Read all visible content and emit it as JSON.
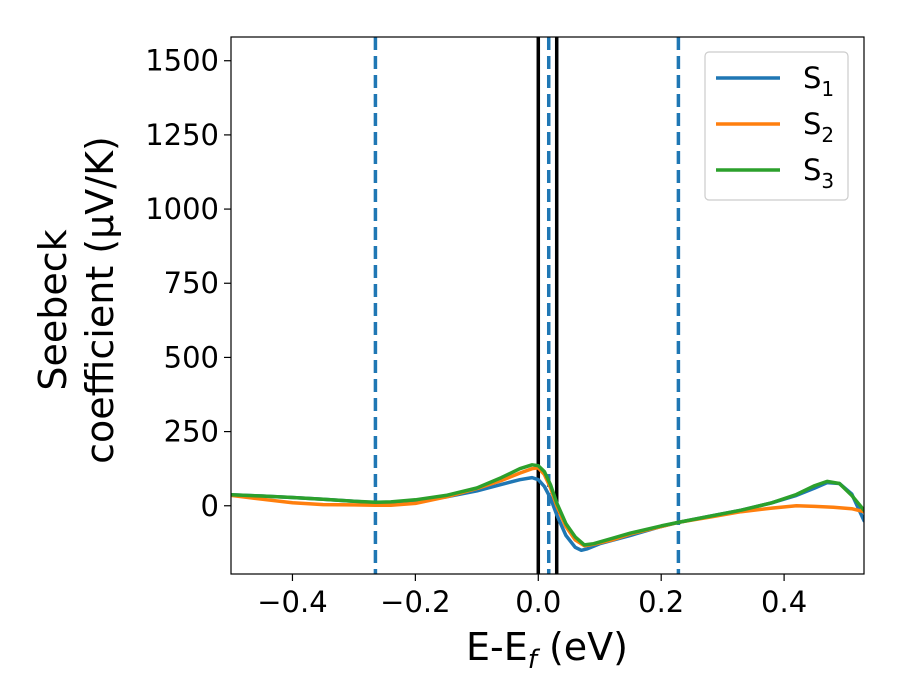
{
  "chart_data": {
    "type": "line",
    "title": "",
    "xlabel": "E-E",
    "xlabel_sub": "f",
    "xlabel_unit": " (eV)",
    "ylabel_line1": "Seebeck",
    "ylabel_line2": "coefficient  (μV/K)",
    "xlim": [
      -0.5,
      0.53
    ],
    "ylim": [
      -230,
      1580
    ],
    "x_ticks": [
      -0.4,
      -0.2,
      0.0,
      0.2,
      0.4
    ],
    "x_tick_labels": [
      "−0.4",
      "−0.2",
      "0.0",
      "0.2",
      "0.4"
    ],
    "y_ticks": [
      0,
      250,
      500,
      750,
      1000,
      1250,
      1500
    ],
    "y_tick_labels": [
      "0",
      "250",
      "500",
      "750",
      "1000",
      "1250",
      "1500"
    ],
    "grid": false,
    "legend_position": "top-right",
    "series": [
      {
        "name": "S",
        "sub": "1",
        "color": "#1f77b4",
        "points": [
          [
            -0.5,
            37
          ],
          [
            -0.45,
            33
          ],
          [
            -0.4,
            28
          ],
          [
            -0.35,
            22
          ],
          [
            -0.3,
            15
          ],
          [
            -0.265,
            10
          ],
          [
            -0.24,
            11
          ],
          [
            -0.2,
            17
          ],
          [
            -0.15,
            30
          ],
          [
            -0.1,
            50
          ],
          [
            -0.06,
            72
          ],
          [
            -0.03,
            88
          ],
          [
            -0.01,
            95
          ],
          [
            0.0,
            88
          ],
          [
            0.01,
            65
          ],
          [
            0.02,
            25
          ],
          [
            0.03,
            -30
          ],
          [
            0.045,
            -100
          ],
          [
            0.06,
            -140
          ],
          [
            0.07,
            -150
          ],
          [
            0.08,
            -145
          ],
          [
            0.1,
            -128
          ],
          [
            0.15,
            -100
          ],
          [
            0.2,
            -70
          ],
          [
            0.23,
            -55
          ],
          [
            0.28,
            -35
          ],
          [
            0.33,
            -15
          ],
          [
            0.38,
            10
          ],
          [
            0.42,
            35
          ],
          [
            0.45,
            60
          ],
          [
            0.47,
            78
          ],
          [
            0.49,
            75
          ],
          [
            0.51,
            40
          ],
          [
            0.53,
            -50
          ]
        ]
      },
      {
        "name": "S",
        "sub": "2",
        "color": "#ff7f0e",
        "points": [
          [
            -0.5,
            35
          ],
          [
            -0.45,
            22
          ],
          [
            -0.4,
            10
          ],
          [
            -0.35,
            4
          ],
          [
            -0.3,
            3
          ],
          [
            -0.265,
            2
          ],
          [
            -0.24,
            2
          ],
          [
            -0.2,
            8
          ],
          [
            -0.15,
            30
          ],
          [
            -0.1,
            58
          ],
          [
            -0.06,
            85
          ],
          [
            -0.03,
            110
          ],
          [
            -0.01,
            125
          ],
          [
            0.0,
            128
          ],
          [
            0.01,
            105
          ],
          [
            0.02,
            60
          ],
          [
            0.03,
            0
          ],
          [
            0.045,
            -70
          ],
          [
            0.06,
            -115
          ],
          [
            0.075,
            -135
          ],
          [
            0.09,
            -130
          ],
          [
            0.12,
            -115
          ],
          [
            0.15,
            -95
          ],
          [
            0.2,
            -70
          ],
          [
            0.23,
            -55
          ],
          [
            0.28,
            -38
          ],
          [
            0.33,
            -20
          ],
          [
            0.38,
            -8
          ],
          [
            0.42,
            0
          ],
          [
            0.45,
            -2
          ],
          [
            0.48,
            -5
          ],
          [
            0.51,
            -10
          ],
          [
            0.53,
            -20
          ]
        ]
      },
      {
        "name": "S",
        "sub": "3",
        "color": "#2ca02c",
        "points": [
          [
            -0.5,
            37
          ],
          [
            -0.45,
            33
          ],
          [
            -0.4,
            28
          ],
          [
            -0.35,
            22
          ],
          [
            -0.3,
            15
          ],
          [
            -0.265,
            12
          ],
          [
            -0.24,
            13
          ],
          [
            -0.2,
            20
          ],
          [
            -0.15,
            35
          ],
          [
            -0.1,
            60
          ],
          [
            -0.06,
            95
          ],
          [
            -0.03,
            125
          ],
          [
            -0.01,
            138
          ],
          [
            0.0,
            135
          ],
          [
            0.01,
            115
          ],
          [
            0.02,
            70
          ],
          [
            0.03,
            10
          ],
          [
            0.045,
            -60
          ],
          [
            0.06,
            -105
          ],
          [
            0.075,
            -132
          ],
          [
            0.09,
            -128
          ],
          [
            0.12,
            -110
          ],
          [
            0.15,
            -92
          ],
          [
            0.2,
            -68
          ],
          [
            0.23,
            -55
          ],
          [
            0.28,
            -35
          ],
          [
            0.33,
            -15
          ],
          [
            0.38,
            10
          ],
          [
            0.42,
            38
          ],
          [
            0.45,
            68
          ],
          [
            0.47,
            82
          ],
          [
            0.49,
            75
          ],
          [
            0.51,
            35
          ],
          [
            0.53,
            -15
          ]
        ]
      }
    ],
    "vertical_lines": [
      {
        "x": -0.265,
        "style": "dashed",
        "color": "#1f77b4"
      },
      {
        "x": 0.017,
        "style": "dashed",
        "color": "#1f77b4"
      },
      {
        "x": 0.228,
        "style": "dashed",
        "color": "#1f77b4"
      },
      {
        "x": 0.0,
        "style": "solid",
        "color": "#000000"
      },
      {
        "x": 0.03,
        "style": "solid",
        "color": "#000000"
      }
    ]
  }
}
